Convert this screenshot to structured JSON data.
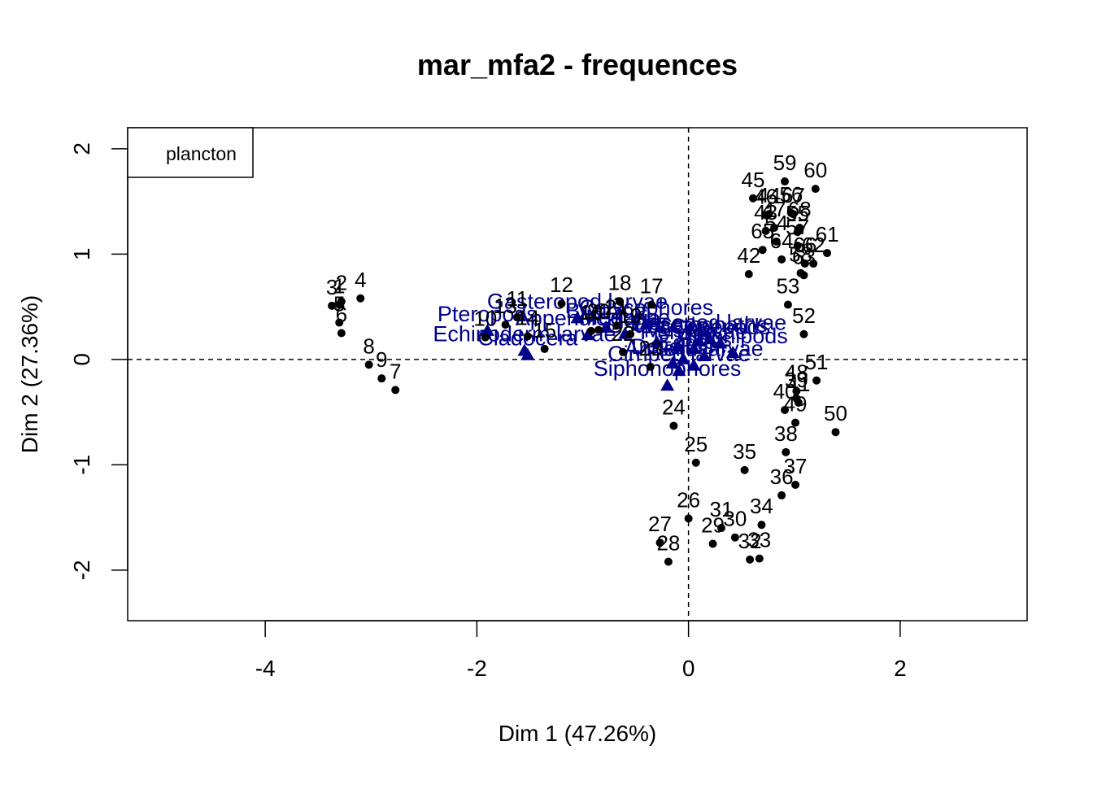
{
  "chart_data": {
    "type": "scatter",
    "title": "mar_mfa2 - frequences",
    "xlabel": "Dim 1 (47.26%)",
    "ylabel": "Dim 2 (27.36%)",
    "xlim": [
      -5.3,
      3.2
    ],
    "ylim": [
      -2.48,
      2.2
    ],
    "x_ticks": [
      -4,
      -2,
      0,
      2
    ],
    "x_tick_labels": [
      "-4",
      "-2",
      "0",
      "2"
    ],
    "y_ticks": [
      -2,
      -1,
      0,
      1,
      2
    ],
    "y_tick_labels": [
      "-2",
      "-1",
      "0",
      "1",
      "2"
    ],
    "reference_lines": {
      "x": 0,
      "y": 0,
      "style": "dashed"
    },
    "legend": {
      "position": "top-left",
      "entries": [
        "plancton"
      ]
    },
    "point_color": "#000000",
    "variable_color": "#00008B",
    "series": [
      {
        "marker": "circle",
        "color": "#000000",
        "points": [
          {
            "label": "1",
            "x": -3.3,
            "y": 0.52
          },
          {
            "label": "2",
            "x": -3.28,
            "y": 0.55
          },
          {
            "label": "3",
            "x": -3.37,
            "y": 0.51
          },
          {
            "label": "4",
            "x": -3.1,
            "y": 0.58
          },
          {
            "label": "5",
            "x": -3.3,
            "y": 0.35
          },
          {
            "label": "6",
            "x": -3.28,
            "y": 0.25
          },
          {
            "label": "7",
            "x": -2.77,
            "y": -0.29
          },
          {
            "label": "8",
            "x": -3.02,
            "y": -0.05
          },
          {
            "label": "9",
            "x": -2.9,
            "y": -0.18
          },
          {
            "label": "10",
            "x": -1.92,
            "y": 0.21
          },
          {
            "label": "11",
            "x": -1.62,
            "y": 0.4
          },
          {
            "label": "12",
            "x": -1.2,
            "y": 0.53
          },
          {
            "label": "13",
            "x": -1.73,
            "y": 0.33
          },
          {
            "label": "14",
            "x": -1.52,
            "y": 0.22
          },
          {
            "label": "15",
            "x": -1.36,
            "y": 0.1
          },
          {
            "label": "16",
            "x": -0.92,
            "y": 0.27
          },
          {
            "label": "17",
            "x": -0.35,
            "y": 0.52
          },
          {
            "label": "18",
            "x": -0.65,
            "y": 0.55
          },
          {
            "label": "19",
            "x": -0.55,
            "y": 0.24
          },
          {
            "label": "20",
            "x": -0.85,
            "y": 0.28
          },
          {
            "label": "21",
            "x": -0.68,
            "y": 0.32
          },
          {
            "label": "22",
            "x": -0.62,
            "y": 0.07
          },
          {
            "label": "23",
            "x": -0.36,
            "y": -0.07
          },
          {
            "label": "24",
            "x": -0.14,
            "y": -0.63
          },
          {
            "label": "25",
            "x": 0.07,
            "y": -0.98
          },
          {
            "label": "26",
            "x": 0.0,
            "y": -1.51
          },
          {
            "label": "27",
            "x": -0.27,
            "y": -1.74
          },
          {
            "label": "28",
            "x": -0.19,
            "y": -1.92
          },
          {
            "label": "29",
            "x": 0.23,
            "y": -1.75
          },
          {
            "label": "30",
            "x": 0.44,
            "y": -1.69
          },
          {
            "label": "31",
            "x": 0.31,
            "y": -1.6
          },
          {
            "label": "32",
            "x": 0.58,
            "y": -1.9
          },
          {
            "label": "33",
            "x": 0.67,
            "y": -1.89
          },
          {
            "label": "34",
            "x": 0.69,
            "y": -1.57
          },
          {
            "label": "35",
            "x": 0.53,
            "y": -1.05
          },
          {
            "label": "36",
            "x": 0.88,
            "y": -1.29
          },
          {
            "label": "37",
            "x": 1.01,
            "y": -1.19
          },
          {
            "label": "38",
            "x": 0.92,
            "y": -0.88
          },
          {
            "label": "39",
            "x": 1.02,
            "y": -0.37
          },
          {
            "label": "40",
            "x": 0.91,
            "y": -0.48
          },
          {
            "label": "41",
            "x": 1.04,
            "y": -0.41
          },
          {
            "label": "42",
            "x": 0.57,
            "y": 0.81
          },
          {
            "label": "43",
            "x": 0.73,
            "y": 1.22
          },
          {
            "label": "44",
            "x": 0.76,
            "y": 1.38
          },
          {
            "label": "45",
            "x": 0.61,
            "y": 1.53
          },
          {
            "label": "46",
            "x": 0.73,
            "y": 1.37
          },
          {
            "label": "47",
            "x": 0.81,
            "y": 1.25
          },
          {
            "label": "48",
            "x": 1.02,
            "y": -0.3
          },
          {
            "label": "49",
            "x": 1.01,
            "y": -0.6
          },
          {
            "label": "50",
            "x": 1.39,
            "y": -0.69
          },
          {
            "label": "51",
            "x": 1.21,
            "y": -0.2
          },
          {
            "label": "52",
            "x": 1.09,
            "y": 0.24
          },
          {
            "label": "53",
            "x": 0.94,
            "y": 0.52
          },
          {
            "label": "54",
            "x": 0.83,
            "y": 1.12
          },
          {
            "label": "55",
            "x": 1.03,
            "y": 1.21
          },
          {
            "label": "56",
            "x": 0.97,
            "y": 1.39
          },
          {
            "label": "57",
            "x": 1.03,
            "y": 1.08
          },
          {
            "label": "58",
            "x": 1.06,
            "y": 0.82
          },
          {
            "label": "59",
            "x": 0.91,
            "y": 1.69
          },
          {
            "label": "60",
            "x": 1.2,
            "y": 1.62
          },
          {
            "label": "61",
            "x": 1.31,
            "y": 1.01
          },
          {
            "label": "62",
            "x": 1.18,
            "y": 0.91
          },
          {
            "label": "63",
            "x": 1.09,
            "y": 0.8
          },
          {
            "label": "64",
            "x": 0.88,
            "y": 0.95
          },
          {
            "label": "65",
            "x": 0.7,
            "y": 1.04
          },
          {
            "label": "66",
            "x": 1.1,
            "y": 0.91
          },
          {
            "label": "67",
            "x": 0.99,
            "y": 1.38
          },
          {
            "label": "68",
            "x": 1.05,
            "y": 1.25
          }
        ]
      },
      {
        "marker": "triangle",
        "color": "#00008B",
        "points": [
          {
            "label": "Pteropods",
            "x": -1.9,
            "y": 0.27
          },
          {
            "label": "Gasteropod larvae",
            "x": -1.05,
            "y": 0.39
          },
          {
            "label": "Bryozoa",
            "x": -0.78,
            "y": 0.3
          },
          {
            "label": "Calycophores",
            "x": -0.4,
            "y": 0.33
          },
          {
            "label": "Echinoderm larvae",
            "x": -1.55,
            "y": 0.08
          },
          {
            "label": "Cladocera",
            "x": -1.52,
            "y": 0.04
          },
          {
            "label": "Appendicularia",
            "x": -0.95,
            "y": 0.23
          },
          {
            "label": "Ostracods",
            "x": -0.3,
            "y": 0.16
          },
          {
            "label": "Medusae",
            "x": -0.6,
            "y": 0.24
          },
          {
            "label": "Chaetognaths",
            "x": 0.1,
            "y": 0.17
          },
          {
            "label": "Copepods",
            "x": 0.3,
            "y": 0.15
          },
          {
            "label": "Decapod larvae",
            "x": 0.2,
            "y": 0.19
          },
          {
            "label": "Mysids",
            "x": -0.1,
            "y": 0.12
          },
          {
            "label": "Fish larvae",
            "x": 0.05,
            "y": 0.1
          },
          {
            "label": "Amphipods",
            "x": 0.42,
            "y": 0.06
          },
          {
            "label": "Eggs",
            "x": -0.05,
            "y": 0.0
          },
          {
            "label": "Salps",
            "x": 0.15,
            "y": 0.03
          },
          {
            "label": "Doliolids",
            "x": -0.15,
            "y": -0.04
          },
          {
            "label": "Siphonophores",
            "x": -0.2,
            "y": -0.25
          },
          {
            "label": "Annelid larvae",
            "x": 0.05,
            "y": -0.06
          },
          {
            "label": "Cirriped larvae",
            "x": -0.09,
            "y": -0.11
          }
        ]
      }
    ],
    "variable_labels_drawn": [
      "Pteropods",
      "Gasteropod larvae",
      "Bryozoa",
      "Calycophores",
      "Echinoderm larvae",
      "Cladocera",
      "Appendicularia",
      "Ostracods",
      "Medusae",
      "Chaetognaths",
      "Copepods",
      "Decapod larvae",
      "Mysids",
      "Fish larvae",
      "Amphipods",
      "Eggs",
      "Salps",
      "Doliolids",
      "Siphonophores",
      "Annelid larvae",
      "Cirriped larvae"
    ]
  }
}
